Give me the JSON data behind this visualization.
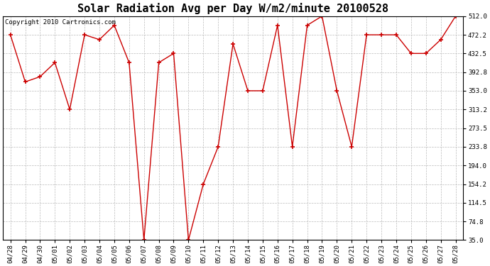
{
  "title": "Solar Radiation Avg per Day W/m2/minute 20100528",
  "copyright": "Copyright 2010 Cartronics.com",
  "dates": [
    "04/28",
    "04/29",
    "04/30",
    "05/01",
    "05/02",
    "05/03",
    "05/04",
    "05/05",
    "05/06",
    "05/07",
    "05/08",
    "05/09",
    "05/10",
    "05/11",
    "05/12",
    "05/13",
    "05/14",
    "05/15",
    "05/16",
    "05/17",
    "05/18",
    "05/19",
    "05/20",
    "05/21",
    "05/22",
    "05/23",
    "05/24",
    "05/25",
    "05/26",
    "05/27",
    "05/28"
  ],
  "values": [
    472.2,
    372.0,
    383.0,
    413.0,
    313.2,
    472.2,
    462.0,
    492.5,
    413.0,
    35.0,
    413.0,
    432.5,
    35.0,
    154.2,
    233.8,
    452.8,
    353.0,
    353.0,
    492.5,
    233.8,
    492.5,
    512.0,
    353.0,
    233.8,
    472.2,
    472.2,
    472.2,
    432.5,
    432.5,
    462.0,
    512.0
  ],
  "line_color": "#cc0000",
  "marker": "+",
  "marker_color": "#cc0000",
  "marker_size": 5,
  "ylim": [
    35.0,
    512.0
  ],
  "yticks": [
    35.0,
    74.8,
    114.5,
    154.2,
    194.0,
    233.8,
    273.5,
    313.2,
    353.0,
    392.8,
    432.5,
    472.2,
    512.0
  ],
  "bg_color": "#ffffff",
  "grid_color": "#bbbbbb",
  "title_fontsize": 11,
  "copyright_fontsize": 6.5,
  "tick_fontsize": 6.5
}
